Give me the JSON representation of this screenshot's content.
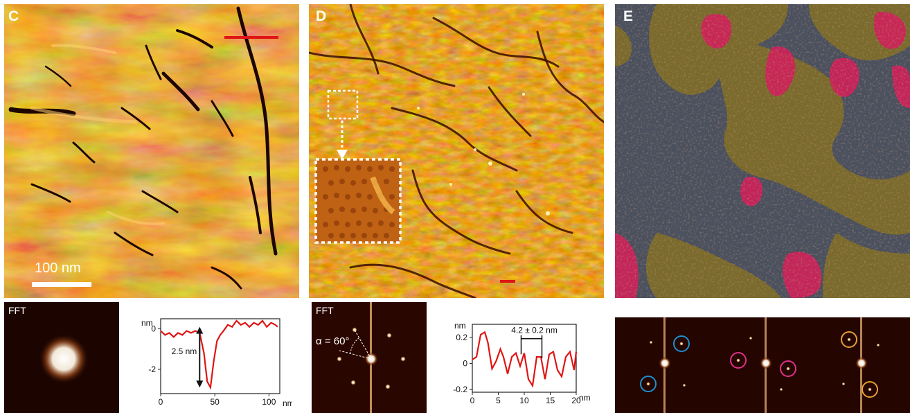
{
  "panels": {
    "c": {
      "letter": "C",
      "scale_bar": "100 nm",
      "fft_label": "FFT"
    },
    "d": {
      "letter": "D",
      "fft_label": "FFT",
      "fft_angle": "α = 60°"
    },
    "e": {
      "letter": "E"
    }
  },
  "colors": {
    "afm_dark": "#5a1e00",
    "afm_mid": "#b8520c",
    "afm_light": "#f0b040",
    "red_marker": "#e01414",
    "profile_line": "#e01414",
    "domain_gray": "#4a505e",
    "domain_olive": "#7a6a2c",
    "domain_magenta": "#d0205a",
    "circle_blue": "#1e90d0",
    "circle_magenta": "#e0308c",
    "circle_orange": "#e8a030"
  },
  "chart_data": [
    {
      "type": "line",
      "panel": "C",
      "xlabel": "nm",
      "ylabel": "nm",
      "x_ticks": [
        "0",
        "50",
        "100"
      ],
      "y_ticks": [
        "0",
        "-2"
      ],
      "xlim": [
        0,
        110
      ],
      "ylim": [
        -3.2,
        0.5
      ],
      "annotation": "2.5 nm",
      "x": [
        0,
        4,
        8,
        12,
        16,
        20,
        24,
        28,
        32,
        36,
        40,
        43,
        46,
        49,
        52,
        55,
        58,
        62,
        66,
        70,
        74,
        78,
        82,
        86,
        90,
        94,
        98,
        102,
        106,
        108
      ],
      "y": [
        -0.1,
        -0.3,
        -0.2,
        -0.4,
        -0.2,
        -0.3,
        -0.1,
        -0.2,
        -0.1,
        -0.2,
        -1.2,
        -2.6,
        -2.9,
        -1.6,
        -0.6,
        -0.3,
        -0.1,
        0.2,
        0.1,
        0.4,
        0.2,
        0.3,
        0.1,
        0.3,
        0.2,
        0.4,
        0.1,
        0.3,
        0.2,
        0.1
      ]
    },
    {
      "type": "line",
      "panel": "D",
      "xlabel": "nm",
      "ylabel": "nm",
      "x_ticks": [
        "0",
        "5",
        "10",
        "15",
        "20"
      ],
      "y_ticks": [
        "0.2",
        "0",
        "-0.2"
      ],
      "xlim": [
        0,
        20
      ],
      "ylim": [
        -0.22,
        0.3
      ],
      "annotation": "4.2 ± 0.2 nm",
      "x": [
        0,
        0.8,
        1.6,
        2.4,
        3.0,
        3.8,
        4.6,
        5.4,
        6.0,
        6.8,
        7.6,
        8.4,
        9.2,
        10.0,
        10.8,
        11.6,
        12.4,
        13.2,
        14.0,
        14.8,
        15.6,
        16.4,
        17.2,
        18.0,
        18.8,
        19.6,
        20.0
      ],
      "y": [
        0.03,
        0.05,
        0.22,
        0.24,
        0.16,
        -0.04,
        0.02,
        0.11,
        0.05,
        -0.08,
        0.05,
        0.08,
        -0.02,
        0.08,
        -0.12,
        -0.17,
        0.05,
        0.05,
        -0.12,
        0.07,
        0.09,
        -0.05,
        -0.1,
        0.05,
        0.09,
        -0.05,
        0.09
      ]
    }
  ]
}
